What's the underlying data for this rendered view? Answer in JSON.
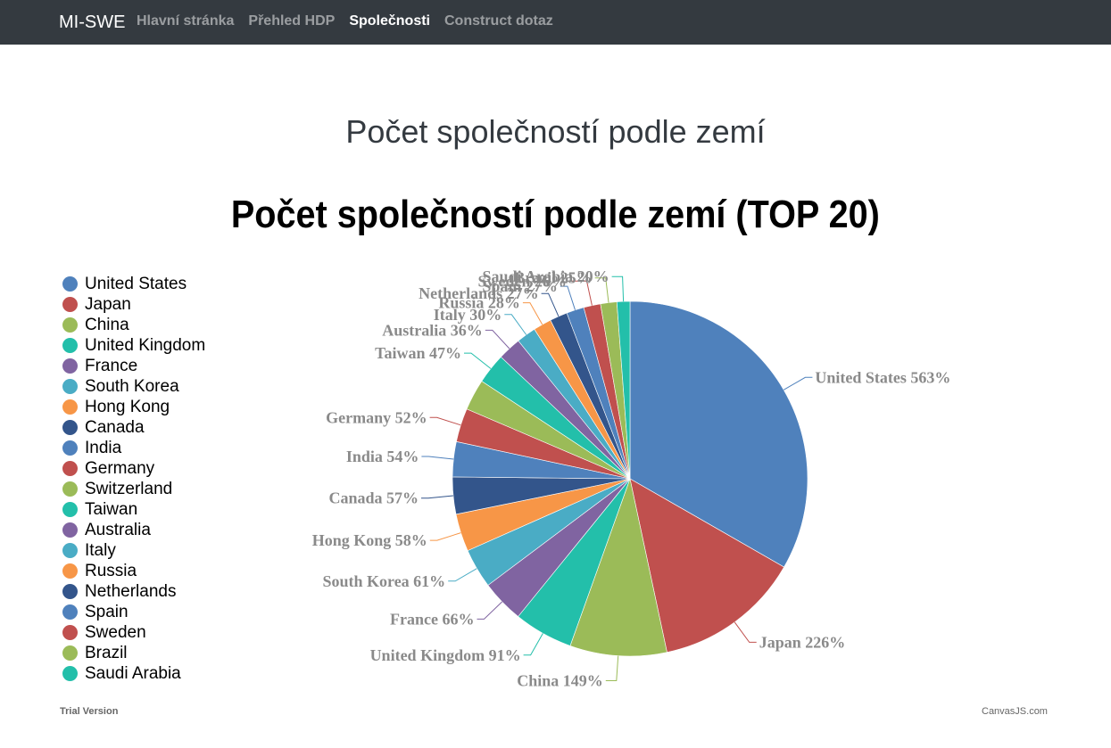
{
  "nav": {
    "brand": "MI-SWE",
    "links": [
      "Hlavní stránka",
      "Přehled HDP",
      "Společnosti",
      "Construct dotaz"
    ],
    "active_index": 2
  },
  "page": {
    "heading": "Počet společností podle zemí"
  },
  "chart_data": {
    "type": "pie",
    "title": "Počet společností podle zemí (TOP 20)",
    "categories": [
      "United States",
      "Japan",
      "China",
      "United Kingdom",
      "France",
      "South Korea",
      "Hong Kong",
      "Canada",
      "India",
      "Germany",
      "Switzerland",
      "Taiwan",
      "Australia",
      "Italy",
      "Russia",
      "Netherlands",
      "Spain",
      "Sweden",
      "Brazil",
      "Saudi Arabia"
    ],
    "values": [
      563,
      226,
      149,
      91,
      66,
      61,
      58,
      57,
      54,
      52,
      48,
      47,
      36,
      30,
      28,
      27,
      27,
      26,
      25,
      20
    ],
    "labels": [
      "United States 563%",
      "Japan 226%",
      "China 149%",
      "United Kingdom 91%",
      "France 66%",
      "South Korea 61%",
      "Hong Kong 58%",
      "Canada 57%",
      "India 54%",
      "Germany 52%",
      "",
      "Taiwan 47%",
      "Australia 36%",
      "Italy 30%",
      "Russia 28%",
      "Netherlands 27%",
      "Spain 27%",
      "Sweden 26%",
      "Brazil 25%",
      "Saudi Arabia 20%"
    ],
    "colors": [
      "#4f81bc",
      "#c0504e",
      "#9bbb58",
      "#23bfaa",
      "#8064a1",
      "#4aacc5",
      "#f79647",
      "#33558b",
      "#4f81bc",
      "#c0504e",
      "#9bbb58",
      "#23bfaa",
      "#8064a1",
      "#4aacc5",
      "#f79647",
      "#33558b",
      "#4f81bc",
      "#c0504e",
      "#9bbb58",
      "#23bfaa"
    ],
    "legend_position": "left"
  },
  "footer": {
    "trial": "Trial Version",
    "credit": "CanvasJS.com"
  }
}
